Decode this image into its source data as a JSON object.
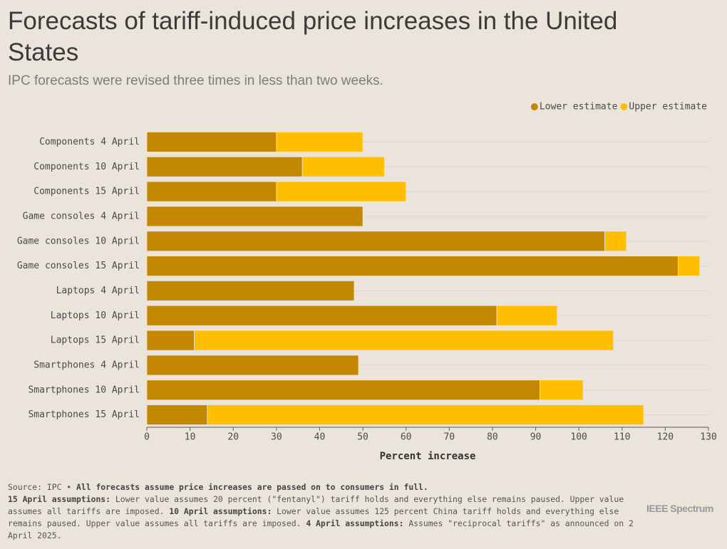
{
  "chart_data": {
    "type": "stacked-barh",
    "title": "Forecasts of tariff-induced price increases in the United States",
    "subtitle": "IPC forecasts were revised three times in less than two weeks.",
    "categories": [
      "Components 4 April",
      "Components 10 April",
      "Components 15 April",
      "Game consoles 4 April",
      "Game consoles 10 April",
      "Game consoles 15 April",
      "Laptops 4 April",
      "Laptops 10 April",
      "Laptops 15 April",
      "Smartphones 4 April",
      "Smartphones 10 April",
      "Smartphones 15 April"
    ],
    "series": [
      {
        "name": "Lower estimate",
        "color": "#c38700",
        "values": [
          30,
          36,
          30,
          50,
          106,
          123,
          48,
          81,
          11,
          49,
          91,
          14
        ]
      },
      {
        "name": "Upper estimate",
        "color": "#ffbe00",
        "values": [
          20,
          19,
          30,
          0,
          5,
          5,
          0,
          14,
          97,
          0,
          10,
          101
        ]
      }
    ],
    "xlabel": "Percent increase",
    "xlim": [
      0,
      130
    ],
    "xticks": [
      0,
      10,
      20,
      30,
      40,
      50,
      60,
      70,
      80,
      90,
      100,
      110,
      120,
      130
    ],
    "grid": true,
    "legend": "top-right"
  },
  "notes": [
    [
      {
        "text": "Source: IPC • ",
        "bold": false
      },
      {
        "text": "All forecasts assume price increases are passed on to consumers in full.",
        "bold": true
      }
    ],
    [
      {
        "text": "15 April assumptions:",
        "bold": true
      },
      {
        "text": " Lower value assumes 20 percent (\"fentanyl\") tariff holds and everything else remains paused. Upper value assumes all tariffs are imposed. ",
        "bold": false
      },
      {
        "text": "10 April assumptions:",
        "bold": true
      },
      {
        "text": " Lower value assumes 125 percent China tariff holds and everything else remains paused. Upper value assumes all tariffs are imposed. ",
        "bold": false
      },
      {
        "text": "4 April assumptions:",
        "bold": true
      },
      {
        "text": " Assumes \"reciprocal tariffs\" as announced on 2 April 2025.",
        "bold": false
      }
    ]
  ],
  "logo": "IEEE Spectrum"
}
